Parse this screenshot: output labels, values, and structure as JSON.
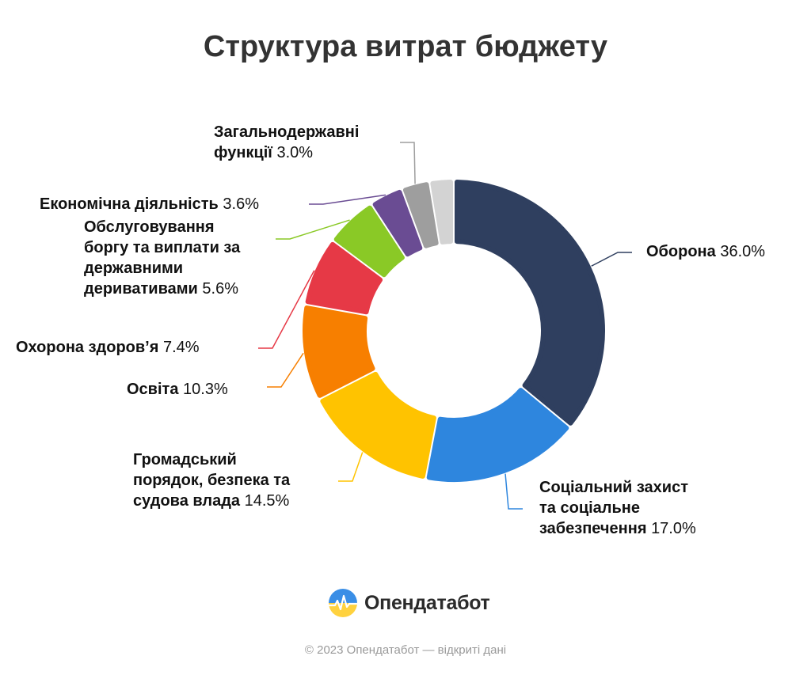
{
  "chart_data": {
    "type": "donut",
    "title": "Структура витрат бюджету",
    "start_angle_deg": 0,
    "direction": "clockwise",
    "slices": [
      {
        "name": "Оборона",
        "value": 36.0,
        "label": "36.0%",
        "color": "#2f3f5f"
      },
      {
        "name": "Соціальний захист та соціальне забезпечення",
        "value": 17.0,
        "label": "17.0%",
        "color": "#2e86de"
      },
      {
        "name": "Громадський порядок, безпека та судова влада",
        "value": 14.5,
        "label": "14.5%",
        "color": "#ffc300"
      },
      {
        "name": "Освіта",
        "value": 10.3,
        "label": "10.3%",
        "color": "#f77f00"
      },
      {
        "name": "Охорона здоров’я",
        "value": 7.4,
        "label": "7.4%",
        "color": "#e63946"
      },
      {
        "name": "Обслуговування боргу та виплати за державними деривативами",
        "value": 5.6,
        "label": "5.6%",
        "color": "#8ac926"
      },
      {
        "name": "Економічна діяльність",
        "value": 3.6,
        "label": "3.6%",
        "color": "#6a4c93"
      },
      {
        "name": "Загальнодержавні функції",
        "value": 3.0,
        "label": "3.0%",
        "color": "#9e9e9e"
      },
      {
        "name": "",
        "value": 2.6,
        "label": "",
        "color": "#d3d3d3"
      }
    ]
  },
  "labels": [
    {
      "lines": [
        "Оборона"
      ],
      "pct": "36.0%"
    },
    {
      "lines": [
        "Соціальний захист",
        "та соціальне",
        "забезпечення"
      ],
      "pct": "17.0%"
    },
    {
      "lines": [
        "Громадський",
        "порядок, безпека та",
        "судова влада"
      ],
      "pct": "14.5%"
    },
    {
      "lines": [
        "Освіта"
      ],
      "pct": "10.3%"
    },
    {
      "lines": [
        "Охорона здоров’я"
      ],
      "pct": "7.4%"
    },
    {
      "lines": [
        "Обслуговування",
        "боргу та виплати за",
        "державними",
        "деривативами"
      ],
      "pct": "5.6%"
    },
    {
      "lines": [
        "Економічна діяльність"
      ],
      "pct": "3.6%"
    },
    {
      "lines": [
        "Загальнодержавні",
        "функції"
      ],
      "pct": "3.0%"
    }
  ],
  "brand": {
    "name": "Опендатабот",
    "icon": "opendatabot-logo-icon"
  },
  "footer": "© 2023 Опендатабот — відкриті дані"
}
